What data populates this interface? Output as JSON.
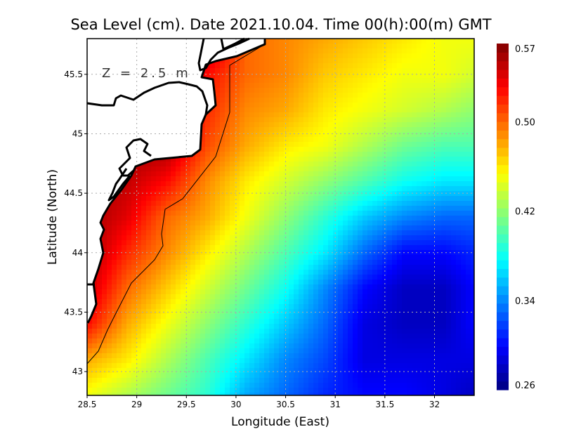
{
  "chart_data": {
    "type": "heatmap",
    "title": "Sea Level (cm). Date 2021.10.04. Time 00(h):00(m) GMT",
    "xlabel": "Longitude (East)",
    "ylabel": "Latitude (North)",
    "annotation": "Z = 2.5 m",
    "xlim": [
      28.5,
      32.4
    ],
    "ylim": [
      42.8,
      45.8
    ],
    "xticks": [
      "28.5",
      "29",
      "29.5",
      "30",
      "30.5",
      "31",
      "31.5",
      "32"
    ],
    "xtick_values": [
      28.5,
      29,
      29.5,
      30,
      30.5,
      31,
      31.5,
      32
    ],
    "yticks": [
      "43",
      "43.5",
      "44",
      "44.5",
      "45",
      "45.5"
    ],
    "ytick_values": [
      43,
      43.5,
      44,
      44.5,
      45,
      45.5
    ],
    "grid": true,
    "colormap": "jet",
    "colorbar": {
      "min": 0.26,
      "max": 0.57,
      "ticks": [
        "0.57",
        "0.50",
        "0.42",
        "0.34",
        "0.26"
      ],
      "tick_values": [
        0.57,
        0.5,
        0.42,
        0.34,
        0.26
      ],
      "placement": "right"
    },
    "contour_level": 0.5,
    "lon": [
      28.5,
      28.9,
      29.3,
      29.7,
      30.1,
      30.5,
      30.9,
      31.3,
      31.7,
      32.1,
      32.4
    ],
    "lat": [
      45.8,
      45.5,
      45.2,
      44.9,
      44.6,
      44.3,
      44.0,
      43.7,
      43.4,
      43.1,
      42.8
    ],
    "values": [
      [
        null,
        null,
        null,
        null,
        0.5,
        0.49,
        0.48,
        0.47,
        0.46,
        0.45,
        0.45
      ],
      [
        null,
        null,
        null,
        0.53,
        0.5,
        0.49,
        0.47,
        0.46,
        0.45,
        0.45,
        0.44
      ],
      [
        null,
        null,
        null,
        0.52,
        0.49,
        0.48,
        0.46,
        0.45,
        0.44,
        0.43,
        0.42
      ],
      [
        null,
        null,
        null,
        0.51,
        0.48,
        0.46,
        0.45,
        0.43,
        0.41,
        0.4,
        0.4
      ],
      [
        null,
        0.55,
        0.53,
        0.49,
        0.46,
        0.44,
        0.42,
        0.4,
        0.38,
        0.37,
        0.37
      ],
      [
        0.56,
        0.54,
        0.5,
        0.48,
        0.45,
        0.42,
        0.39,
        0.36,
        0.34,
        0.33,
        0.33
      ],
      [
        0.56,
        0.52,
        0.49,
        0.46,
        0.43,
        0.4,
        0.37,
        0.33,
        0.3,
        0.3,
        0.31
      ],
      [
        0.55,
        0.5,
        0.47,
        0.44,
        0.41,
        0.38,
        0.34,
        0.3,
        0.28,
        0.28,
        0.3
      ],
      [
        0.53,
        0.48,
        0.45,
        0.42,
        0.39,
        0.36,
        0.33,
        0.29,
        0.28,
        0.28,
        0.3
      ],
      [
        0.48,
        0.46,
        0.43,
        0.4,
        0.37,
        0.34,
        0.32,
        0.29,
        0.29,
        0.29,
        0.29
      ],
      [
        0.45,
        0.43,
        0.41,
        0.39,
        0.35,
        0.33,
        0.31,
        0.3,
        0.3,
        0.29,
        0.28
      ]
    ]
  }
}
